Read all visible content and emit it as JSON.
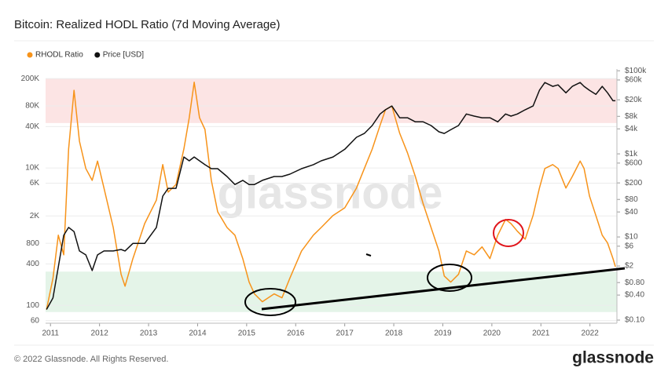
{
  "chart_data": {
    "type": "line",
    "title": "Bitcoin: Realized HODL Ratio (7d Moving Average)",
    "footer": "© 2022 Glassnode. All Rights Reserved.",
    "logo": "glassnode",
    "watermark": "glassnode",
    "y_scale": "log",
    "y2_scale": "log",
    "grid": true,
    "legend_position": "top-left",
    "xlim": [
      2010.9,
      2022.55
    ],
    "xticks": [
      2011,
      2012,
      2013,
      2014,
      2015,
      2016,
      2017,
      2018,
      2019,
      2020,
      2021,
      2022
    ],
    "ylim": [
      55,
      275000
    ],
    "yticks": [
      60,
      100,
      400,
      800,
      {
        "value": 2000,
        "label": "2K"
      },
      {
        "value": 6000,
        "label": "6K"
      },
      {
        "value": 10000,
        "label": "10K"
      },
      {
        "value": 40000,
        "label": "40K"
      },
      {
        "value": 80000,
        "label": "80K"
      },
      {
        "value": 200000,
        "label": "200K"
      }
    ],
    "y2lim": [
      0.084,
      110000
    ],
    "y2ticks": [
      {
        "value": 0.1,
        "label": "$0.10"
      },
      {
        "value": 0.4,
        "label": "$0.40"
      },
      {
        "value": 0.8,
        "label": "$0.80"
      },
      {
        "value": 2,
        "label": "$2"
      },
      {
        "value": 6,
        "label": "$6"
      },
      {
        "value": 10,
        "label": "$10"
      },
      {
        "value": 40,
        "label": "$40"
      },
      {
        "value": 80,
        "label": "$80"
      },
      {
        "value": 200,
        "label": "$200"
      },
      {
        "value": 600,
        "label": "$600"
      },
      {
        "value": 1000,
        "label": "$1k"
      },
      {
        "value": 4000,
        "label": "$4k"
      },
      {
        "value": 8000,
        "label": "$8k"
      },
      {
        "value": 20000,
        "label": "$20k"
      },
      {
        "value": 60000,
        "label": "$60k"
      },
      {
        "value": 100000,
        "label": "$100k"
      }
    ],
    "bands": [
      {
        "from": 45000,
        "to": 200000,
        "color": "#fce4e4"
      },
      {
        "from": 80,
        "to": 310,
        "color": "#e4f4e8"
      }
    ],
    "x": [
      2010.92,
      2011.05,
      2011.16,
      2011.27,
      2011.37,
      2011.48,
      2011.59,
      2011.72,
      2011.85,
      2011.96,
      2012.09,
      2012.28,
      2012.44,
      2012.52,
      2012.68,
      2012.92,
      2013.16,
      2013.29,
      2013.4,
      2013.56,
      2013.72,
      2013.83,
      2013.93,
      2014.04,
      2014.15,
      2014.28,
      2014.41,
      2014.6,
      2014.76,
      2014.92,
      2015.05,
      2015.16,
      2015.32,
      2015.56,
      2015.72,
      2015.88,
      2016.12,
      2016.36,
      2016.52,
      2016.76,
      2017,
      2017.24,
      2017.4,
      2017.56,
      2017.72,
      2017.83,
      2017.96,
      2018.12,
      2018.28,
      2018.44,
      2018.6,
      2018.76,
      2018.92,
      2019.03,
      2019.16,
      2019.32,
      2019.48,
      2019.64,
      2019.8,
      2019.96,
      2020.12,
      2020.28,
      2020.39,
      2020.52,
      2020.68,
      2020.84,
      2020.97,
      2021.08,
      2021.24,
      2021.35,
      2021.51,
      2021.64,
      2021.8,
      2021.88,
      2021.99,
      2022.12,
      2022.25,
      2022.36,
      2022.47,
      2022.52
    ],
    "series": [
      {
        "name": "RHODL Ratio",
        "color": "#f7931a",
        "axis": "y",
        "values": [
          87,
          248,
          1050,
          545,
          18800,
          135000,
          24500,
          9800,
          6600,
          12600,
          5100,
          1360,
          283,
          190,
          480,
          1550,
          3400,
          11200,
          4450,
          5750,
          19000,
          53700,
          177000,
          53700,
          36300,
          6600,
          2300,
          1360,
          1050,
          480,
          218,
          147,
          113,
          147,
          129,
          248,
          620,
          1050,
          1360,
          2030,
          2630,
          5100,
          9800,
          18800,
          41700,
          70300,
          79600,
          31900,
          16600,
          7500,
          3000,
          1360,
          620,
          268,
          218,
          283,
          620,
          545,
          710,
          480,
          1050,
          1780,
          1550,
          1200,
          920,
          2030,
          5100,
          9800,
          11200,
          9800,
          5100,
          7500,
          12600,
          9800,
          3900,
          2030,
          1050,
          810,
          480,
          365
        ]
      },
      {
        "name": "Price [USD]",
        "color": "#111111",
        "axis": "y2",
        "values": [
          0.18,
          0.34,
          1.9,
          11,
          17,
          13.5,
          4.6,
          3.7,
          1.55,
          3.7,
          4.6,
          4.6,
          5,
          4.6,
          7,
          7,
          17,
          96,
          148,
          148,
          840,
          680,
          840,
          680,
          550,
          440,
          440,
          285,
          183,
          230,
          183,
          183,
          230,
          285,
          285,
          324,
          440,
          550,
          680,
          840,
          1290,
          2500,
          3100,
          4800,
          9100,
          11500,
          14200,
          7400,
          7400,
          5900,
          5900,
          4800,
          3400,
          3100,
          3800,
          4800,
          9100,
          8100,
          7400,
          7400,
          5900,
          9100,
          8100,
          9100,
          11500,
          14200,
          33900,
          52000,
          42000,
          45700,
          29500,
          42000,
          52000,
          42000,
          33900,
          27000,
          42000,
          29500,
          19000,
          19000
        ]
      }
    ]
  }
}
